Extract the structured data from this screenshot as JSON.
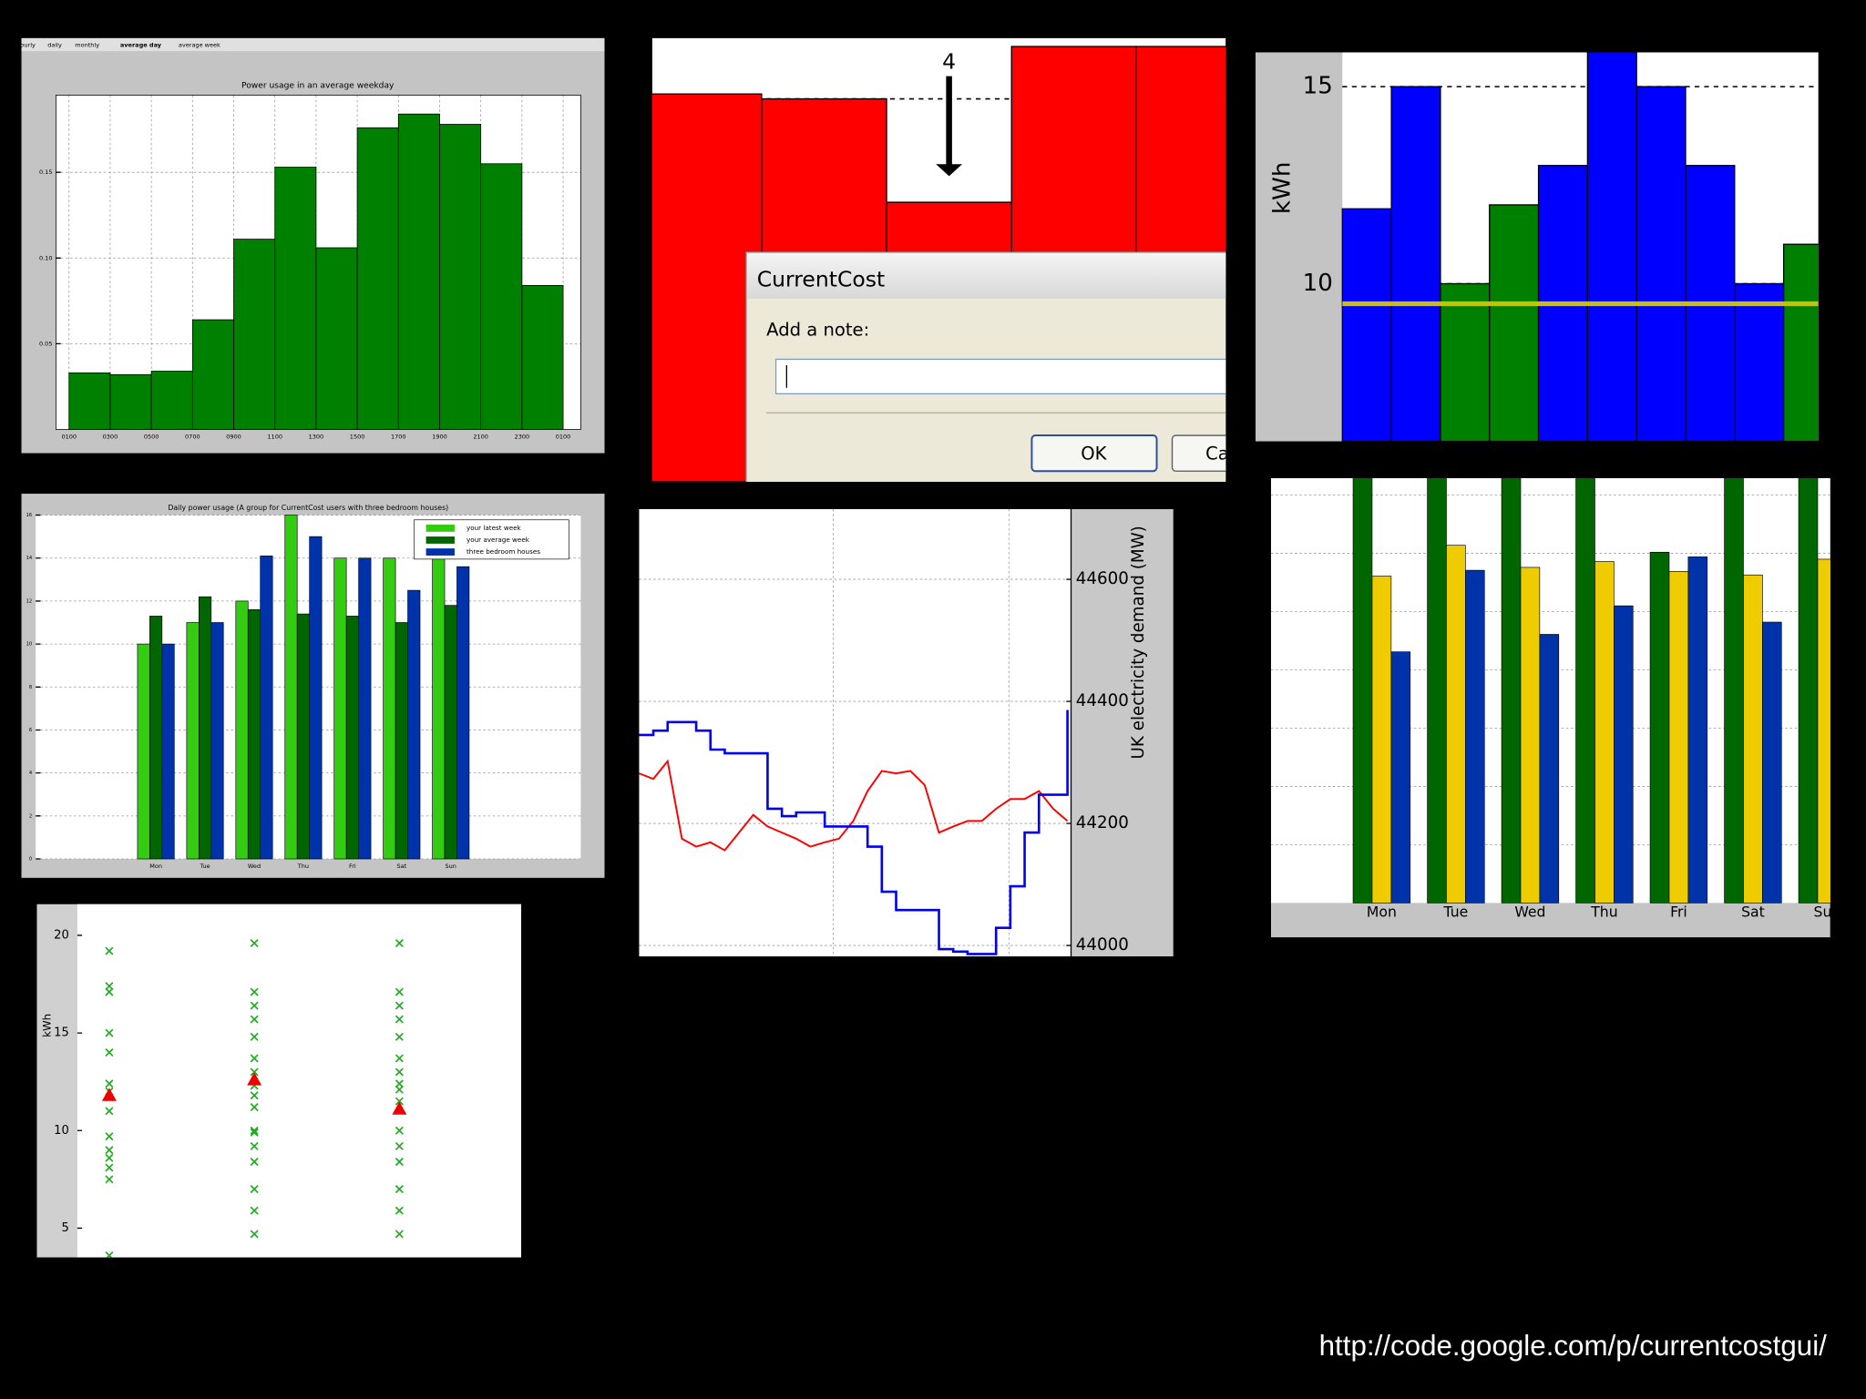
{
  "chart_data": [
    {
      "type": "histogram",
      "tabs": [
        "hourly",
        "daily",
        "monthly",
        "average day",
        "average week"
      ],
      "title": "Power usage in an average weekday",
      "bins": [
        "0100",
        "0300",
        "0500",
        "0700",
        "0900",
        "1100",
        "1300",
        "1500",
        "1700",
        "1900",
        "2100",
        "2300",
        "0100"
      ],
      "values": [
        0.033,
        0.032,
        0.034,
        0.064,
        0.111,
        0.153,
        0.106,
        0.176,
        0.184,
        0.178,
        0.155,
        0.084
      ],
      "color": "#008000",
      "ylim": [
        0,
        0.195
      ],
      "yticks": [
        0.05,
        {
          "value": 0.1,
          "label": "0.10"
        },
        0.15
      ],
      "grid": true
    },
    {
      "type": "bar",
      "values": [
        87.4,
        86.3,
        63.0,
        98.1,
        98.1
      ],
      "color": "#ff0000",
      "ylim": [
        0,
        100
      ],
      "yticks": [
        12.9,
        37.0,
        61.7,
        86.3
      ],
      "grid": true,
      "annotation": {
        "text": "4",
        "index": 2
      },
      "dialog": {
        "title": "CurrentCost",
        "label": "Add a note:",
        "ok": "OK",
        "cancel": "Cancel"
      }
    },
    {
      "type": "bar",
      "y_label": "kWh",
      "values": [
        11.9,
        15.0,
        10.0,
        12.0,
        13.0,
        15.9,
        15.0,
        13.0,
        10.0,
        11.0
      ],
      "colors": [
        "#0000ff",
        "#0000ff",
        "#008000",
        "#008000",
        "#0000ff",
        "#0000ff",
        "#0000ff",
        "#0000ff",
        "#0000ff",
        "#008000"
      ],
      "ylim": [
        6,
        15.87
      ],
      "yticks": [
        10,
        15
      ],
      "grid": true,
      "hline": 9.49,
      "hline_color": "#c8c000"
    },
    {
      "type": "grouped_bar",
      "title": "Daily power usage (A group for CurrentCost users with three bedroom houses)",
      "categories": [
        "Mon",
        "Tue",
        "Wed",
        "Thu",
        "Fri",
        "Sat",
        "Sun"
      ],
      "series": [
        {
          "name": "your latest week",
          "color": "#33cc11",
          "values": [
            10,
            11,
            12,
            16,
            14,
            14,
            14
          ]
        },
        {
          "name": "your average week",
          "color": "#006600",
          "values": [
            11.3,
            12.2,
            11.6,
            11.4,
            11.3,
            11,
            11.8
          ]
        },
        {
          "name": "three bedroom houses",
          "color": "#0033aa",
          "values": [
            10,
            11,
            14.1,
            15,
            14,
            12.5,
            13.6
          ]
        }
      ],
      "ylim": [
        0,
        16
      ],
      "yticks": [
        0,
        2,
        4,
        6,
        8,
        10,
        12,
        14,
        16
      ],
      "grid": true,
      "legend": "upper right"
    },
    {
      "type": "scatter",
      "y_label": "kWh",
      "series": [
        {
          "color": "#22aa22",
          "marker": "x",
          "x": [
            1,
            1,
            1,
            1,
            1,
            1,
            1,
            1,
            1,
            1,
            1,
            1,
            1,
            1,
            1,
            2,
            2,
            2,
            2,
            2,
            2,
            2,
            2,
            2,
            2,
            2,
            2,
            2,
            2,
            2,
            2,
            2,
            3,
            3,
            3,
            3,
            3,
            3,
            3,
            3,
            3,
            3,
            3,
            3,
            3,
            3,
            3,
            3
          ],
          "values": [
            19.2,
            17.4,
            17.1,
            15,
            14,
            12.4,
            12,
            11.7,
            11,
            9.7,
            9,
            8.6,
            8.1,
            7.5,
            3.6,
            19.6,
            17.1,
            16.4,
            15.7,
            14.8,
            13.7,
            13,
            12.3,
            11.8,
            11.2,
            10,
            9.9,
            9.2,
            8.4,
            7,
            5.9,
            4.7,
            19.6,
            17.1,
            16.4,
            15.7,
            14.8,
            13.7,
            13,
            12.4,
            12.1,
            11.5,
            10,
            9.2,
            8.4,
            7,
            5.9,
            4.7
          ]
        },
        {
          "color": "#ee0000",
          "marker": "^",
          "x": [
            1,
            2,
            3
          ],
          "values": [
            11.8,
            12.6,
            11.1
          ]
        }
      ],
      "xlim": [
        0.78,
        3.84
      ],
      "ylim": [
        3.5,
        21.6
      ],
      "yticks": [
        5,
        10,
        15,
        20
      ]
    },
    {
      "type": "line",
      "y_label": "UK electricity demand (MW)",
      "x": [
        0,
        1,
        2,
        3,
        4,
        5,
        6,
        7,
        8,
        9,
        10,
        11,
        12,
        13,
        14,
        15,
        16,
        17,
        18,
        19,
        20,
        21,
        22,
        23,
        24,
        25,
        26,
        27,
        28,
        29,
        30
      ],
      "series": [
        {
          "color": "#ff0000",
          "axis": "y2",
          "values": [
            44282,
            44273,
            44302,
            44175,
            44162,
            44169,
            44156,
            44185,
            44214,
            44195,
            44185,
            44175,
            44162,
            44169,
            44175,
            44204,
            44253,
            44286,
            44282,
            44286,
            44263,
            44185,
            44195,
            44204,
            44204,
            44224,
            44240,
            44240,
            44253,
            44224,
            44204
          ]
        },
        {
          "color": "#0000ee",
          "axis": "y2",
          "step": true,
          "values": [
            44345,
            44352,
            44366,
            44366,
            44352,
            44321,
            44315,
            44315,
            44315,
            44224,
            44212,
            44218,
            44218,
            44195,
            44195,
            44195,
            44162,
            44088,
            44058,
            44058,
            44058,
            43994,
            43990,
            43986,
            43986,
            44029,
            44097,
            44185,
            44247,
            44247,
            44386
          ]
        }
      ],
      "xlim": [
        0,
        30.25
      ],
      "xticks": [
        13.6,
        25.9
      ],
      "y2lim": [
        43982,
        44715
      ],
      "y2ticks": [
        44000,
        44200,
        44400,
        44600
      ],
      "grid": true
    },
    {
      "type": "grouped_bar",
      "categories": [
        "Mon",
        "Tue",
        "Wed",
        "Thu",
        "Fri",
        "Sat",
        "Sun"
      ],
      "series": [
        {
          "color": "#006600",
          "values": [
            7.3,
            7.3,
            7.3,
            7.3,
            6.02,
            7.3,
            7.3
          ]
        },
        {
          "color": "#eecc00",
          "values": [
            5.61,
            6.14,
            5.76,
            5.86,
            5.69,
            5.63,
            5.9
          ]
        },
        {
          "color": "#0033aa",
          "values": [
            4.31,
            5.71,
            4.61,
            5.1,
            5.94,
            4.82,
            null
          ]
        }
      ],
      "ylim": [
        0,
        7.29
      ],
      "yticks": [
        1,
        2,
        3,
        4,
        5,
        6,
        7
      ],
      "grid": true
    }
  ],
  "footer": {
    "url": "http://code.google.com/p/currentcostgui/"
  }
}
